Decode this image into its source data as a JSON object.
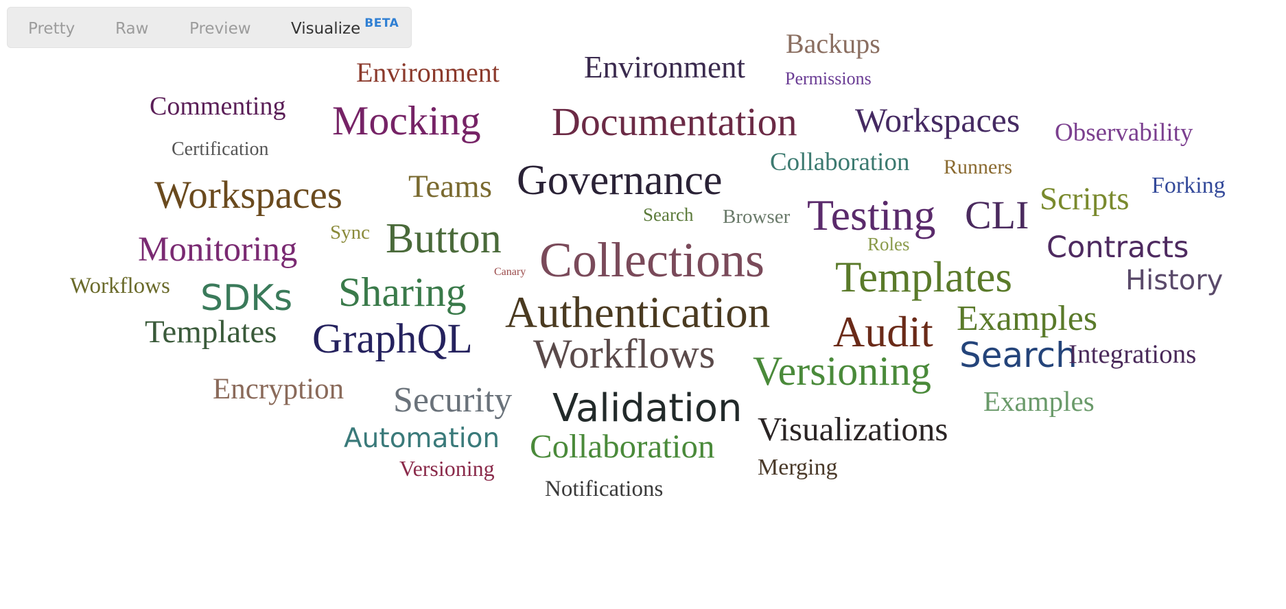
{
  "tabs": {
    "pretty": "Pretty",
    "raw": "Raw",
    "preview": "Preview",
    "visualize": "Visualize",
    "beta_badge": "BETA"
  },
  "word_cloud": {
    "words": [
      {
        "text": "Backups",
        "color": "#8a6e60"
      },
      {
        "text": "Environment",
        "color": "#8b3a2c"
      },
      {
        "text": "Environment",
        "color": "#3a2a4e"
      },
      {
        "text": "Permissions",
        "color": "#6a3c94"
      },
      {
        "text": "Commenting",
        "color": "#5a1e57"
      },
      {
        "text": "Mocking",
        "color": "#762366"
      },
      {
        "text": "Documentation",
        "color": "#6b2a45"
      },
      {
        "text": "Workspaces",
        "color": "#452a62"
      },
      {
        "text": "Observability",
        "color": "#7b3f8f"
      },
      {
        "text": "Certification",
        "color": "#555555"
      },
      {
        "text": "Collaboration",
        "color": "#3c7a70"
      },
      {
        "text": "Runners",
        "color": "#8a6a30"
      },
      {
        "text": "Workspaces",
        "color": "#6a4a1e"
      },
      {
        "text": "Teams",
        "color": "#7a6a30"
      },
      {
        "text": "Governance",
        "color": "#2a2236"
      },
      {
        "text": "Scripts",
        "color": "#7a8a2e"
      },
      {
        "text": "Forking",
        "color": "#344a9a"
      },
      {
        "text": "Search",
        "color": "#5b7a3a"
      },
      {
        "text": "Browser",
        "color": "#6a7a6a"
      },
      {
        "text": "Testing",
        "color": "#5a2a6b"
      },
      {
        "text": "CLI",
        "color": "#4a2a5e"
      },
      {
        "text": "Monitoring",
        "color": "#7a2a72"
      },
      {
        "text": "Sync",
        "color": "#8a8a3a"
      },
      {
        "text": "Button",
        "color": "#4a6a3a"
      },
      {
        "text": "Canary",
        "color": "#9a4a4a"
      },
      {
        "text": "Collections",
        "color": "#7a4a5a"
      },
      {
        "text": "Roles",
        "color": "#8a9a4a"
      },
      {
        "text": "Contracts",
        "color": "#4e2a60"
      },
      {
        "text": "Workflows",
        "color": "#6a6a2a"
      },
      {
        "text": "SDKs",
        "color": "#3a7a5a"
      },
      {
        "text": "Sharing",
        "color": "#3a7a4a"
      },
      {
        "text": "Templates",
        "color": "#5a7a2a"
      },
      {
        "text": "History",
        "color": "#5a4a6a"
      },
      {
        "text": "Authentication",
        "color": "#4a3a20"
      },
      {
        "text": "Templates",
        "color": "#3a5a3a"
      },
      {
        "text": "Audit",
        "color": "#6a2a18"
      },
      {
        "text": "Examples",
        "color": "#5a7a2a"
      },
      {
        "text": "GraphQL",
        "color": "#25225e"
      },
      {
        "text": "Workflows",
        "color": "#5a4a4a"
      },
      {
        "text": "Search",
        "color": "#24447a"
      },
      {
        "text": "Integrations",
        "color": "#4a2a5a"
      },
      {
        "text": "Versioning",
        "color": "#4a8a3a"
      },
      {
        "text": "Encryption",
        "color": "#8a6a5a"
      },
      {
        "text": "Security",
        "color": "#6a727a"
      },
      {
        "text": "Validation",
        "color": "#222a2a"
      },
      {
        "text": "Examples",
        "color": "#6a9a6a"
      },
      {
        "text": "Visualizations",
        "color": "#2a2424"
      },
      {
        "text": "Automation",
        "color": "#3a7a7a"
      },
      {
        "text": "Collaboration",
        "color": "#4a8a3a"
      },
      {
        "text": "Versioning",
        "color": "#8a2a4a"
      },
      {
        "text": "Merging",
        "color": "#4a3a2a"
      },
      {
        "text": "Notifications",
        "color": "#3a3a3a"
      }
    ]
  }
}
